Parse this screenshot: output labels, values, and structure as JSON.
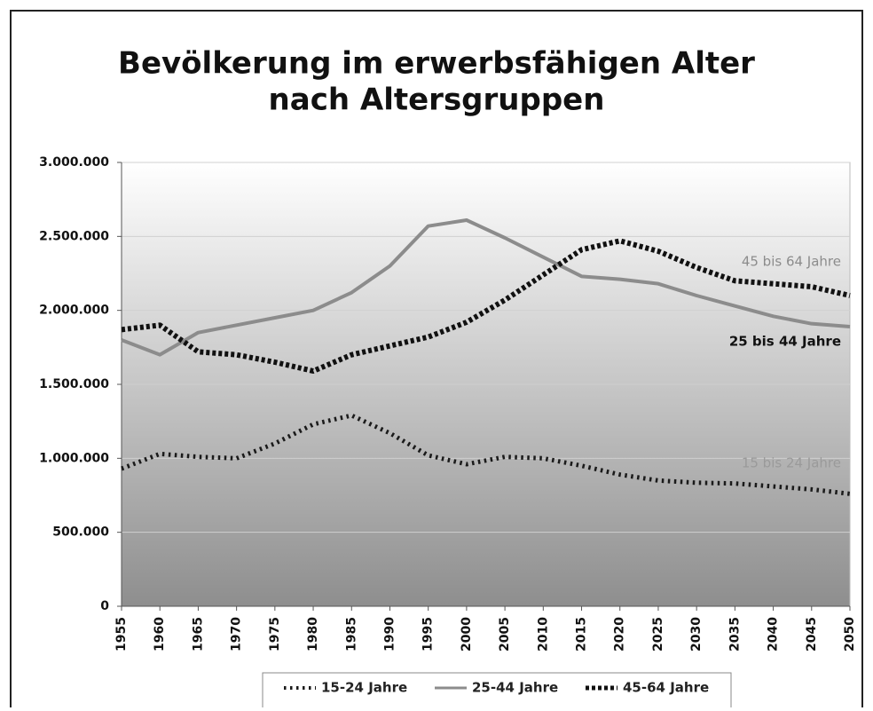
{
  "chart_data": {
    "type": "line",
    "title": [
      "Bevölkerung im erwerbsfähigen Alter",
      "nach Altersgruppen"
    ],
    "x": [
      1955,
      1960,
      1965,
      1970,
      1975,
      1980,
      1985,
      1990,
      1995,
      2000,
      2005,
      2010,
      2015,
      2020,
      2025,
      2030,
      2035,
      2040,
      2045,
      2050
    ],
    "xlim": [
      1955,
      2050
    ],
    "xticks": [
      1955,
      1960,
      1965,
      1970,
      1975,
      1980,
      1985,
      1990,
      1995,
      2000,
      2005,
      2010,
      2015,
      2020,
      2025,
      2030,
      2035,
      2040,
      2045,
      2050
    ],
    "ylim": [
      0,
      3000000
    ],
    "yticks": [
      0,
      {
        "value": 500000,
        "label": "500.000"
      },
      {
        "value": 1000000,
        "label": "1.000.000"
      },
      {
        "value": 1500000,
        "label": "1.500.000"
      },
      {
        "value": 2000000,
        "label": "2.000.000"
      },
      {
        "value": 2500000,
        "label": "2.500.000"
      },
      {
        "value": 3000000,
        "label": "3.000.000"
      }
    ],
    "grid": true,
    "legend": "bottom",
    "series": [
      {
        "name": "15-24 Jahre",
        "color": "#1a1a1a",
        "style": "dotted",
        "values": [
          930000,
          1030000,
          1010000,
          1000000,
          1100000,
          1230000,
          1290000,
          1170000,
          1020000,
          960000,
          1010000,
          1000000,
          950000,
          890000,
          850000,
          835000,
          830000,
          810000,
          790000,
          760000
        ]
      },
      {
        "name": "25-44 Jahre",
        "color": "#8c8c8c",
        "style": "solid",
        "values": [
          1800000,
          1700000,
          1850000,
          1900000,
          1950000,
          2000000,
          2120000,
          2300000,
          2570000,
          2610000,
          2490000,
          2360000,
          2230000,
          2210000,
          2180000,
          2100000,
          2030000,
          1960000,
          1910000,
          1890000
        ]
      },
      {
        "name": "45-64 Jahre",
        "color": "#111111",
        "style": "dashed",
        "values": [
          1870000,
          1900000,
          1720000,
          1700000,
          1650000,
          1590000,
          1700000,
          1760000,
          1820000,
          1920000,
          2070000,
          2240000,
          2410000,
          2470000,
          2400000,
          2290000,
          2200000,
          2180000,
          2160000,
          2100000
        ]
      }
    ],
    "annotations": [
      {
        "text": "45 bis 64 Jahre",
        "color": "#8c8c8c"
      },
      {
        "text": "25 bis 44 Jahre",
        "color": "#111111"
      },
      {
        "text": "15 bis 24 Jahre",
        "color": "#9a9a9a"
      }
    ]
  }
}
